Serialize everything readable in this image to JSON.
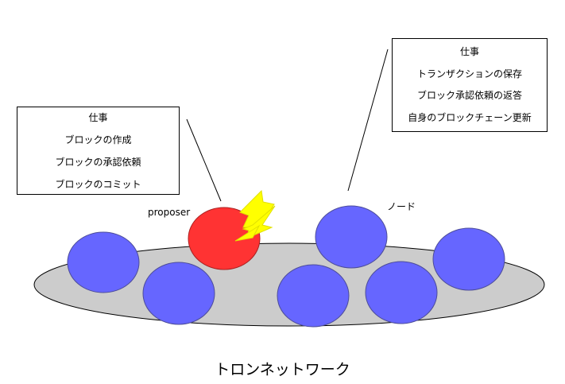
{
  "left_box": {
    "lines": [
      "仕事",
      "ブロックの作成",
      "ブロックの承認依頼",
      "ブロックのコミット"
    ]
  },
  "right_box": {
    "lines": [
      "仕事",
      "トランザクションの保存",
      "ブロック承認依頼の返答",
      "自身のブロックチェーン更新"
    ]
  },
  "labels": {
    "proposer": "proposer",
    "node": "ノード",
    "network": "トロンネットワーク"
  },
  "colors": {
    "network_fill": "#cccccc",
    "node_fill": "#6666ff",
    "proposer_fill": "#ff3333",
    "lightning_fill": "#ffff00"
  },
  "icons": {
    "lightning": "lightning-bolt-icon"
  }
}
